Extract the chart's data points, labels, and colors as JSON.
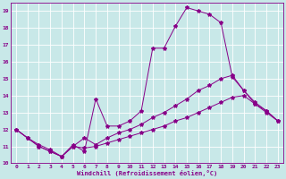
{
  "xlabel": "Windchill (Refroidissement éolien,°C)",
  "bg_color": "#c8e8e8",
  "grid_color": "#aacccc",
  "line_color": "#880088",
  "xlim": [
    -0.5,
    23.5
  ],
  "ylim": [
    10,
    19.5
  ],
  "yticks": [
    10,
    11,
    12,
    13,
    14,
    15,
    16,
    17,
    18,
    19
  ],
  "xticks": [
    0,
    1,
    2,
    3,
    4,
    5,
    6,
    7,
    8,
    9,
    10,
    11,
    12,
    13,
    14,
    15,
    16,
    17,
    18,
    19,
    20,
    21,
    22,
    23
  ],
  "lines": [
    {
      "x": [
        0,
        1,
        2,
        3,
        4,
        5,
        6,
        7,
        8,
        9,
        10,
        11,
        12,
        13,
        14,
        15,
        16,
        17,
        18,
        19,
        20,
        21,
        22,
        23
      ],
      "y": [
        12.0,
        11.5,
        11.0,
        10.7,
        10.4,
        11.1,
        10.7,
        13.8,
        12.2,
        12.2,
        12.5,
        13.1,
        16.8,
        16.8,
        18.1,
        19.2,
        19.0,
        18.8,
        18.3,
        15.1,
        14.3,
        13.5,
        13.1,
        12.5
      ]
    },
    {
      "x": [
        0,
        1,
        2,
        3,
        4,
        5,
        6,
        7,
        8,
        9,
        10,
        11,
        12,
        13,
        14,
        15,
        16,
        17,
        18,
        19,
        20,
        21,
        22,
        23
      ],
      "y": [
        12.0,
        11.5,
        11.1,
        10.8,
        10.4,
        11.0,
        11.5,
        11.1,
        11.5,
        11.8,
        12.0,
        12.3,
        12.7,
        13.0,
        13.4,
        13.8,
        14.3,
        14.6,
        15.0,
        15.2,
        14.3,
        13.6,
        13.1,
        12.5
      ]
    },
    {
      "x": [
        0,
        1,
        2,
        3,
        4,
        5,
        6,
        7,
        8,
        9,
        10,
        11,
        12,
        13,
        14,
        15,
        16,
        17,
        18,
        19,
        20,
        21,
        22,
        23
      ],
      "y": [
        12.0,
        11.5,
        11.0,
        10.7,
        10.4,
        11.0,
        10.9,
        11.0,
        11.2,
        11.4,
        11.6,
        11.8,
        12.0,
        12.2,
        12.5,
        12.7,
        13.0,
        13.3,
        13.6,
        13.9,
        14.0,
        13.5,
        13.0,
        12.5
      ]
    }
  ]
}
